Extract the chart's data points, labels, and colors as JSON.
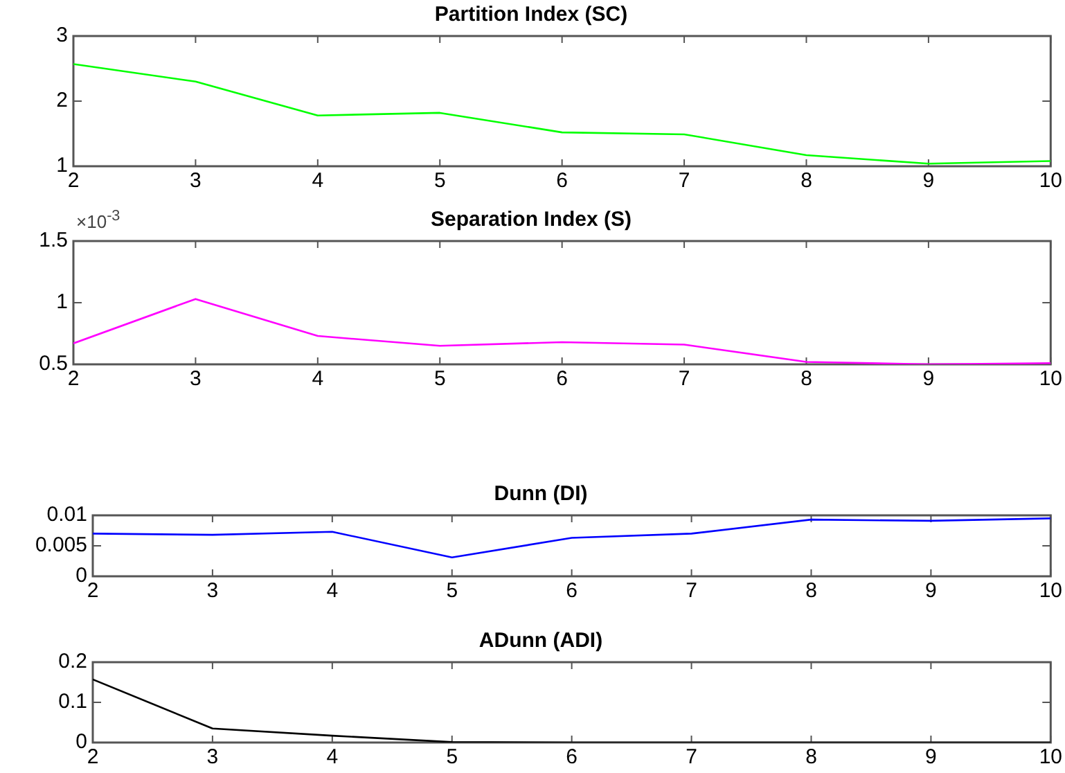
{
  "chart_data": [
    {
      "type": "line",
      "title": "Partition Index (SC)",
      "x": [
        2,
        3,
        4,
        5,
        6,
        7,
        8,
        9,
        10
      ],
      "xlim": [
        2,
        10
      ],
      "xticks": [
        2,
        3,
        4,
        5,
        6,
        7,
        8,
        9,
        10
      ],
      "ylim": [
        1,
        3
      ],
      "yticks": [
        1,
        2,
        3
      ],
      "grid": false,
      "series": [
        {
          "color": "#00ff00",
          "values": [
            2.57,
            2.3,
            1.78,
            1.82,
            1.52,
            1.49,
            1.17,
            1.04,
            1.08
          ]
        }
      ]
    },
    {
      "type": "line",
      "title": "Separation Index (S)",
      "x": [
        2,
        3,
        4,
        5,
        6,
        7,
        8,
        9,
        10
      ],
      "xlim": [
        2,
        10
      ],
      "xticks": [
        2,
        3,
        4,
        5,
        6,
        7,
        8,
        9,
        10
      ],
      "ylim": [
        0.5,
        1.5
      ],
      "yticks": [
        0.5,
        1,
        1.5
      ],
      "grid": false,
      "annotations": [
        "×10$^{-3}$"
      ],
      "series": [
        {
          "color": "#ff00ff",
          "values": [
            0.67,
            1.03,
            0.73,
            0.65,
            0.68,
            0.66,
            0.52,
            0.5,
            0.51
          ]
        }
      ]
    },
    {
      "type": "line",
      "title": "Dunn (DI)",
      "x": [
        2,
        3,
        4,
        5,
        6,
        7,
        8,
        9,
        10
      ],
      "xlim": [
        2,
        10
      ],
      "xticks": [
        2,
        3,
        4,
        5,
        6,
        7,
        8,
        9,
        10
      ],
      "ylim": [
        0,
        0.01
      ],
      "yticks": [
        0,
        0.005,
        0.01
      ],
      "grid": false,
      "series": [
        {
          "color": "#0000ff",
          "values": [
            0.007,
            0.0068,
            0.0073,
            0.0031,
            0.0063,
            0.007,
            0.0093,
            0.0091,
            0.0095
          ]
        }
      ]
    },
    {
      "type": "line",
      "title": "ADunn (ADI)",
      "x": [
        2,
        3,
        4,
        5,
        6,
        7,
        8,
        9,
        10
      ],
      "xlim": [
        2,
        10
      ],
      "xticks": [
        2,
        3,
        4,
        5,
        6,
        7,
        8,
        9,
        10
      ],
      "ylim": [
        0,
        0.2
      ],
      "yticks": [
        0,
        0.1,
        0.2
      ],
      "grid": false,
      "series": [
        {
          "color": "#000000",
          "values": [
            0.157,
            0.035,
            0.017,
            0.001,
            0,
            0,
            0,
            0,
            0
          ]
        }
      ]
    }
  ]
}
